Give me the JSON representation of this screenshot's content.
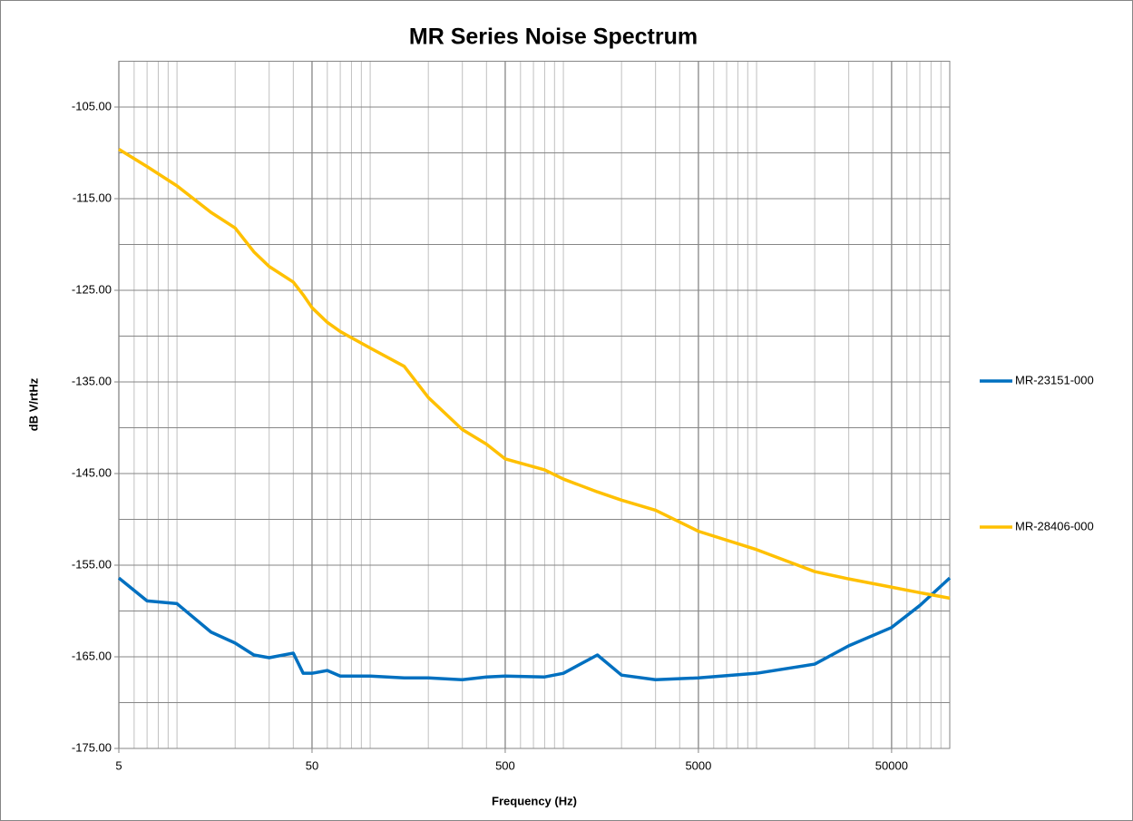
{
  "chart_data": {
    "type": "line",
    "title": "MR Series Noise Spectrum",
    "x_label": "Frequency (Hz)",
    "y_label": "dB V/rtHz",
    "x_scale": "log",
    "legend": "right",
    "grid": true,
    "xlim": [
      5,
      100000
    ],
    "xticks": [
      5,
      50,
      500,
      5000,
      50000
    ],
    "xminor": [
      6,
      7,
      8,
      9,
      10,
      20,
      30,
      40,
      60,
      70,
      80,
      90,
      100,
      200,
      300,
      400,
      600,
      700,
      800,
      900,
      1000,
      2000,
      3000,
      4000,
      6000,
      7000,
      8000,
      9000,
      10000,
      20000,
      30000,
      40000,
      60000,
      70000,
      80000,
      90000
    ],
    "ylim": [
      -175,
      -100
    ],
    "yticks": [
      {
        "value": -175,
        "label": "-175.00"
      },
      {
        "value": -165,
        "label": "-165.00"
      },
      {
        "value": -155,
        "label": "-155.00"
      },
      {
        "value": -145,
        "label": "-145.00"
      },
      {
        "value": -135,
        "label": "-135.00"
      },
      {
        "value": -125,
        "label": "-125.00"
      },
      {
        "value": -115,
        "label": "-115.00"
      },
      {
        "value": -105,
        "label": "-105.00"
      }
    ],
    "yminor": [
      -170,
      -160,
      -150,
      -140,
      -130,
      -120,
      -110
    ],
    "x": [
      5,
      7,
      10,
      15,
      20,
      25,
      30,
      40,
      45,
      50,
      60,
      70,
      100,
      150,
      200,
      300,
      400,
      500,
      800,
      1000,
      1500,
      2000,
      3000,
      5000,
      10000,
      20000,
      30000,
      50000,
      70000,
      100000
    ],
    "series": [
      {
        "name": "MR-23151-000",
        "color": "#0070c0",
        "values": [
          -156.4,
          -158.9,
          -159.2,
          -162.3,
          -163.5,
          -164.8,
          -165.1,
          -164.6,
          -166.8,
          -166.8,
          -166.5,
          -167.1,
          -167.1,
          -167.3,
          -167.3,
          -167.5,
          -167.2,
          -167.1,
          -167.2,
          -166.8,
          -164.8,
          -167.0,
          -167.5,
          -167.3,
          -166.8,
          -165.8,
          -163.8,
          -161.8,
          -159.4,
          -156.4
        ]
      },
      {
        "name": "MR-28406-000",
        "color": "#ffc000",
        "values": [
          -109.6,
          -111.5,
          -113.6,
          -116.5,
          -118.2,
          -120.8,
          -122.4,
          -124.1,
          -125.5,
          -126.9,
          -128.5,
          -129.5,
          -131.3,
          -133.3,
          -136.7,
          -140.2,
          -141.8,
          -143.4,
          -144.6,
          -145.6,
          -147.0,
          -147.9,
          -149.0,
          -151.3,
          -153.3,
          -155.7,
          -156.5,
          -157.4,
          -158.0,
          -158.6
        ]
      }
    ]
  }
}
